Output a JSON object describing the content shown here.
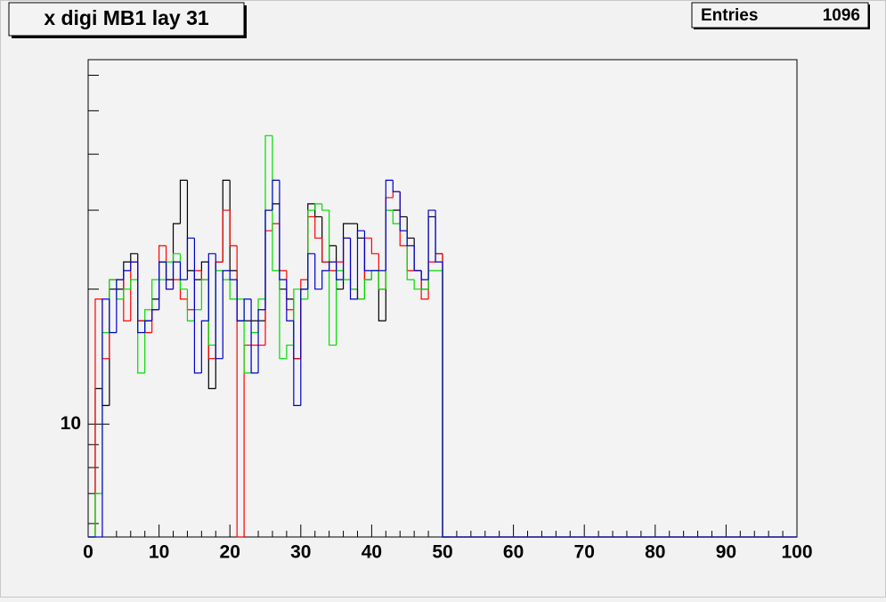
{
  "chart_data": {
    "type": "histogram",
    "title": "x digi MB1 lay 31",
    "stats": {
      "label": "Entries",
      "value": 1096
    },
    "bins": [
      0,
      1,
      2,
      3,
      4,
      5,
      6,
      7,
      8,
      9,
      10,
      11,
      12,
      13,
      14,
      15,
      16,
      17,
      18,
      19,
      20,
      21,
      22,
      23,
      24,
      25,
      26,
      27,
      28,
      29,
      30,
      31,
      32,
      33,
      34,
      35,
      36,
      37,
      38,
      39,
      40,
      41,
      42,
      43,
      44,
      45,
      46,
      47,
      48,
      49,
      50,
      51,
      52,
      53,
      54,
      55,
      56,
      57,
      58,
      59,
      60,
      61,
      62,
      63,
      64,
      65,
      66,
      67,
      68,
      69,
      70,
      71,
      72,
      73,
      74,
      75,
      76,
      77,
      78,
      79,
      80,
      81,
      82,
      83,
      84,
      85,
      86,
      87,
      88,
      89,
      90,
      91,
      92,
      93,
      94,
      95,
      96,
      97,
      98,
      99,
      100
    ],
    "series": [
      {
        "color": "#000000",
        "values": [
          0,
          12,
          11,
          20,
          20,
          23,
          24,
          17,
          17,
          19,
          23,
          21,
          28,
          35,
          22,
          21,
          23,
          12,
          23,
          35,
          22,
          17,
          17,
          17,
          17,
          30,
          31,
          20,
          19,
          14,
          20,
          31,
          29,
          23,
          25,
          20,
          28,
          28,
          26,
          21,
          22,
          17,
          30,
          30,
          29,
          26,
          22,
          20,
          29,
          24,
          0,
          0,
          0,
          0,
          0,
          0,
          0,
          0,
          0,
          0,
          0,
          0,
          0,
          0,
          0,
          0,
          0,
          0,
          0,
          0,
          0,
          0,
          0,
          0,
          0,
          0,
          0,
          0,
          0,
          0,
          0,
          0,
          0,
          0,
          0,
          0,
          0,
          0,
          0,
          0,
          0,
          0,
          0,
          0,
          0,
          0,
          0,
          0,
          0,
          0
        ]
      },
      {
        "color": "#ff0000",
        "values": [
          0,
          19,
          14,
          21,
          21,
          17,
          23,
          17,
          16,
          18,
          25,
          20,
          21,
          19,
          18,
          22,
          21,
          14,
          23,
          30,
          25,
          0,
          15,
          15,
          15,
          27,
          28,
          22,
          18,
          14,
          21,
          29,
          26,
          23,
          22,
          23,
          26,
          20,
          19,
          26,
          24,
          20,
          32,
          33,
          25,
          22,
          22,
          19,
          23,
          24,
          0,
          0,
          0,
          0,
          0,
          0,
          0,
          0,
          0,
          0,
          0,
          0,
          0,
          0,
          0,
          0,
          0,
          0,
          0,
          0,
          0,
          0,
          0,
          0,
          0,
          0,
          0,
          0,
          0,
          0,
          0,
          0,
          0,
          0,
          0,
          0,
          0,
          0,
          0,
          0,
          0,
          0,
          0,
          0,
          0,
          0,
          0,
          0,
          0,
          0
        ]
      },
      {
        "color": "#00dd00",
        "values": [
          0,
          7,
          16,
          21,
          19,
          20,
          21,
          13,
          18,
          21,
          21,
          23,
          24,
          20,
          17,
          18,
          21,
          15,
          22,
          21,
          19,
          19,
          13,
          16,
          19,
          44,
          22,
          14,
          15,
          20,
          19,
          30,
          31,
          30,
          15,
          22,
          21,
          20,
          19,
          21,
          22,
          20,
          30,
          28,
          27,
          21,
          20,
          20,
          22,
          22,
          0,
          0,
          0,
          0,
          0,
          0,
          0,
          0,
          0,
          0,
          0,
          0,
          0,
          0,
          0,
          0,
          0,
          0,
          0,
          0,
          0,
          0,
          0,
          0,
          0,
          0,
          0,
          0,
          0,
          0,
          0,
          0,
          0,
          0,
          0,
          0,
          0,
          0,
          0,
          0,
          0,
          0,
          0,
          0,
          0,
          0,
          0,
          0,
          0,
          0
        ]
      },
      {
        "color": "#0000cc",
        "values": [
          0,
          0,
          19,
          16,
          21,
          22,
          23,
          16,
          17,
          18,
          23,
          20,
          23,
          21,
          26,
          13,
          17,
          24,
          14,
          22,
          21,
          17,
          19,
          13,
          18,
          30,
          35,
          21,
          17,
          11,
          20,
          24,
          20,
          22,
          23,
          21,
          26,
          19,
          27,
          22,
          22,
          22,
          35,
          33,
          27,
          25,
          22,
          21,
          30,
          23,
          0,
          0,
          0,
          0,
          0,
          0,
          0,
          0,
          0,
          0,
          0,
          0,
          0,
          0,
          0,
          0,
          0,
          0,
          0,
          0,
          0,
          0,
          0,
          0,
          0,
          0,
          0,
          0,
          0,
          0,
          0,
          0,
          0,
          0,
          0,
          0,
          0,
          0,
          0,
          0,
          0,
          0,
          0,
          0,
          0,
          0,
          0,
          0,
          0,
          0
        ]
      }
    ],
    "xlim": [
      0,
      100
    ],
    "xticks": [
      0,
      10,
      20,
      30,
      40,
      50,
      60,
      70,
      80,
      90,
      100
    ],
    "xminor": [
      2,
      4,
      6,
      8,
      12,
      14,
      16,
      18,
      22,
      24,
      26,
      28,
      32,
      34,
      36,
      38,
      42,
      44,
      46,
      48,
      52,
      54,
      56,
      58,
      62,
      64,
      66,
      68,
      72,
      74,
      76,
      78,
      82,
      84,
      86,
      88,
      92,
      94,
      96,
      98
    ],
    "ylim": [
      5.6,
      65
    ],
    "yticks": [
      10
    ],
    "yminor": [
      6,
      7,
      8,
      9,
      20,
      30,
      40,
      50,
      60
    ],
    "log_y": true
  }
}
